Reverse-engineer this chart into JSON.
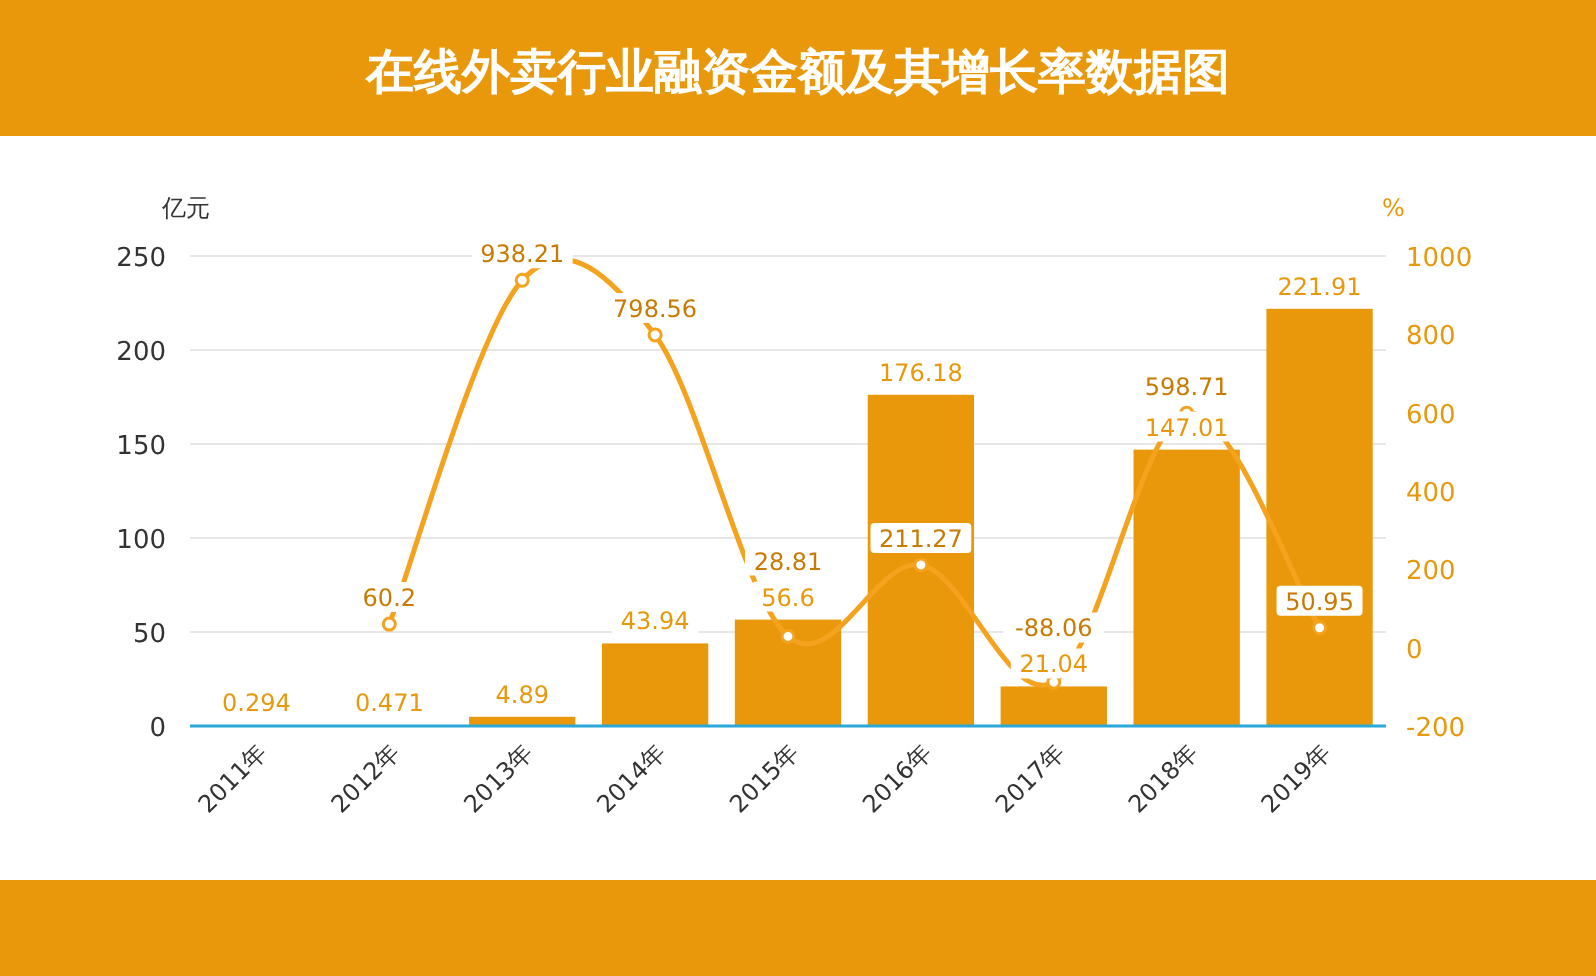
{
  "chart_data": {
    "type": "bar",
    "title": "在线外卖行业融资金额及其增长率数据图",
    "ylabel": "亿元",
    "y2label": "%",
    "categories": [
      "2011年",
      "2012年",
      "2013年",
      "2014年",
      "2015年",
      "2016年",
      "2017年",
      "2018年",
      "2019年"
    ],
    "series": [
      {
        "color": "#e8980a",
        "values": [
          0.294,
          0.471,
          4.89,
          43.94,
          56.6,
          176.18,
          21.04,
          147.01,
          221.91
        ]
      },
      {
        "type": "line",
        "axis": "y2",
        "color": "#f5a21e",
        "values": [
          null,
          60.2,
          938.21,
          798.56,
          28.81,
          211.27,
          -88.06,
          598.71,
          50.95
        ]
      }
    ],
    "ylim": [
      0,
      250
    ],
    "yticks": [
      0,
      50,
      100,
      150,
      200,
      250
    ],
    "y2lim": [
      -200,
      1000
    ],
    "y2ticks": [
      -200,
      0,
      200,
      400,
      600,
      800,
      1000
    ],
    "grid": "y",
    "data_labels": true,
    "marker": "circle"
  }
}
